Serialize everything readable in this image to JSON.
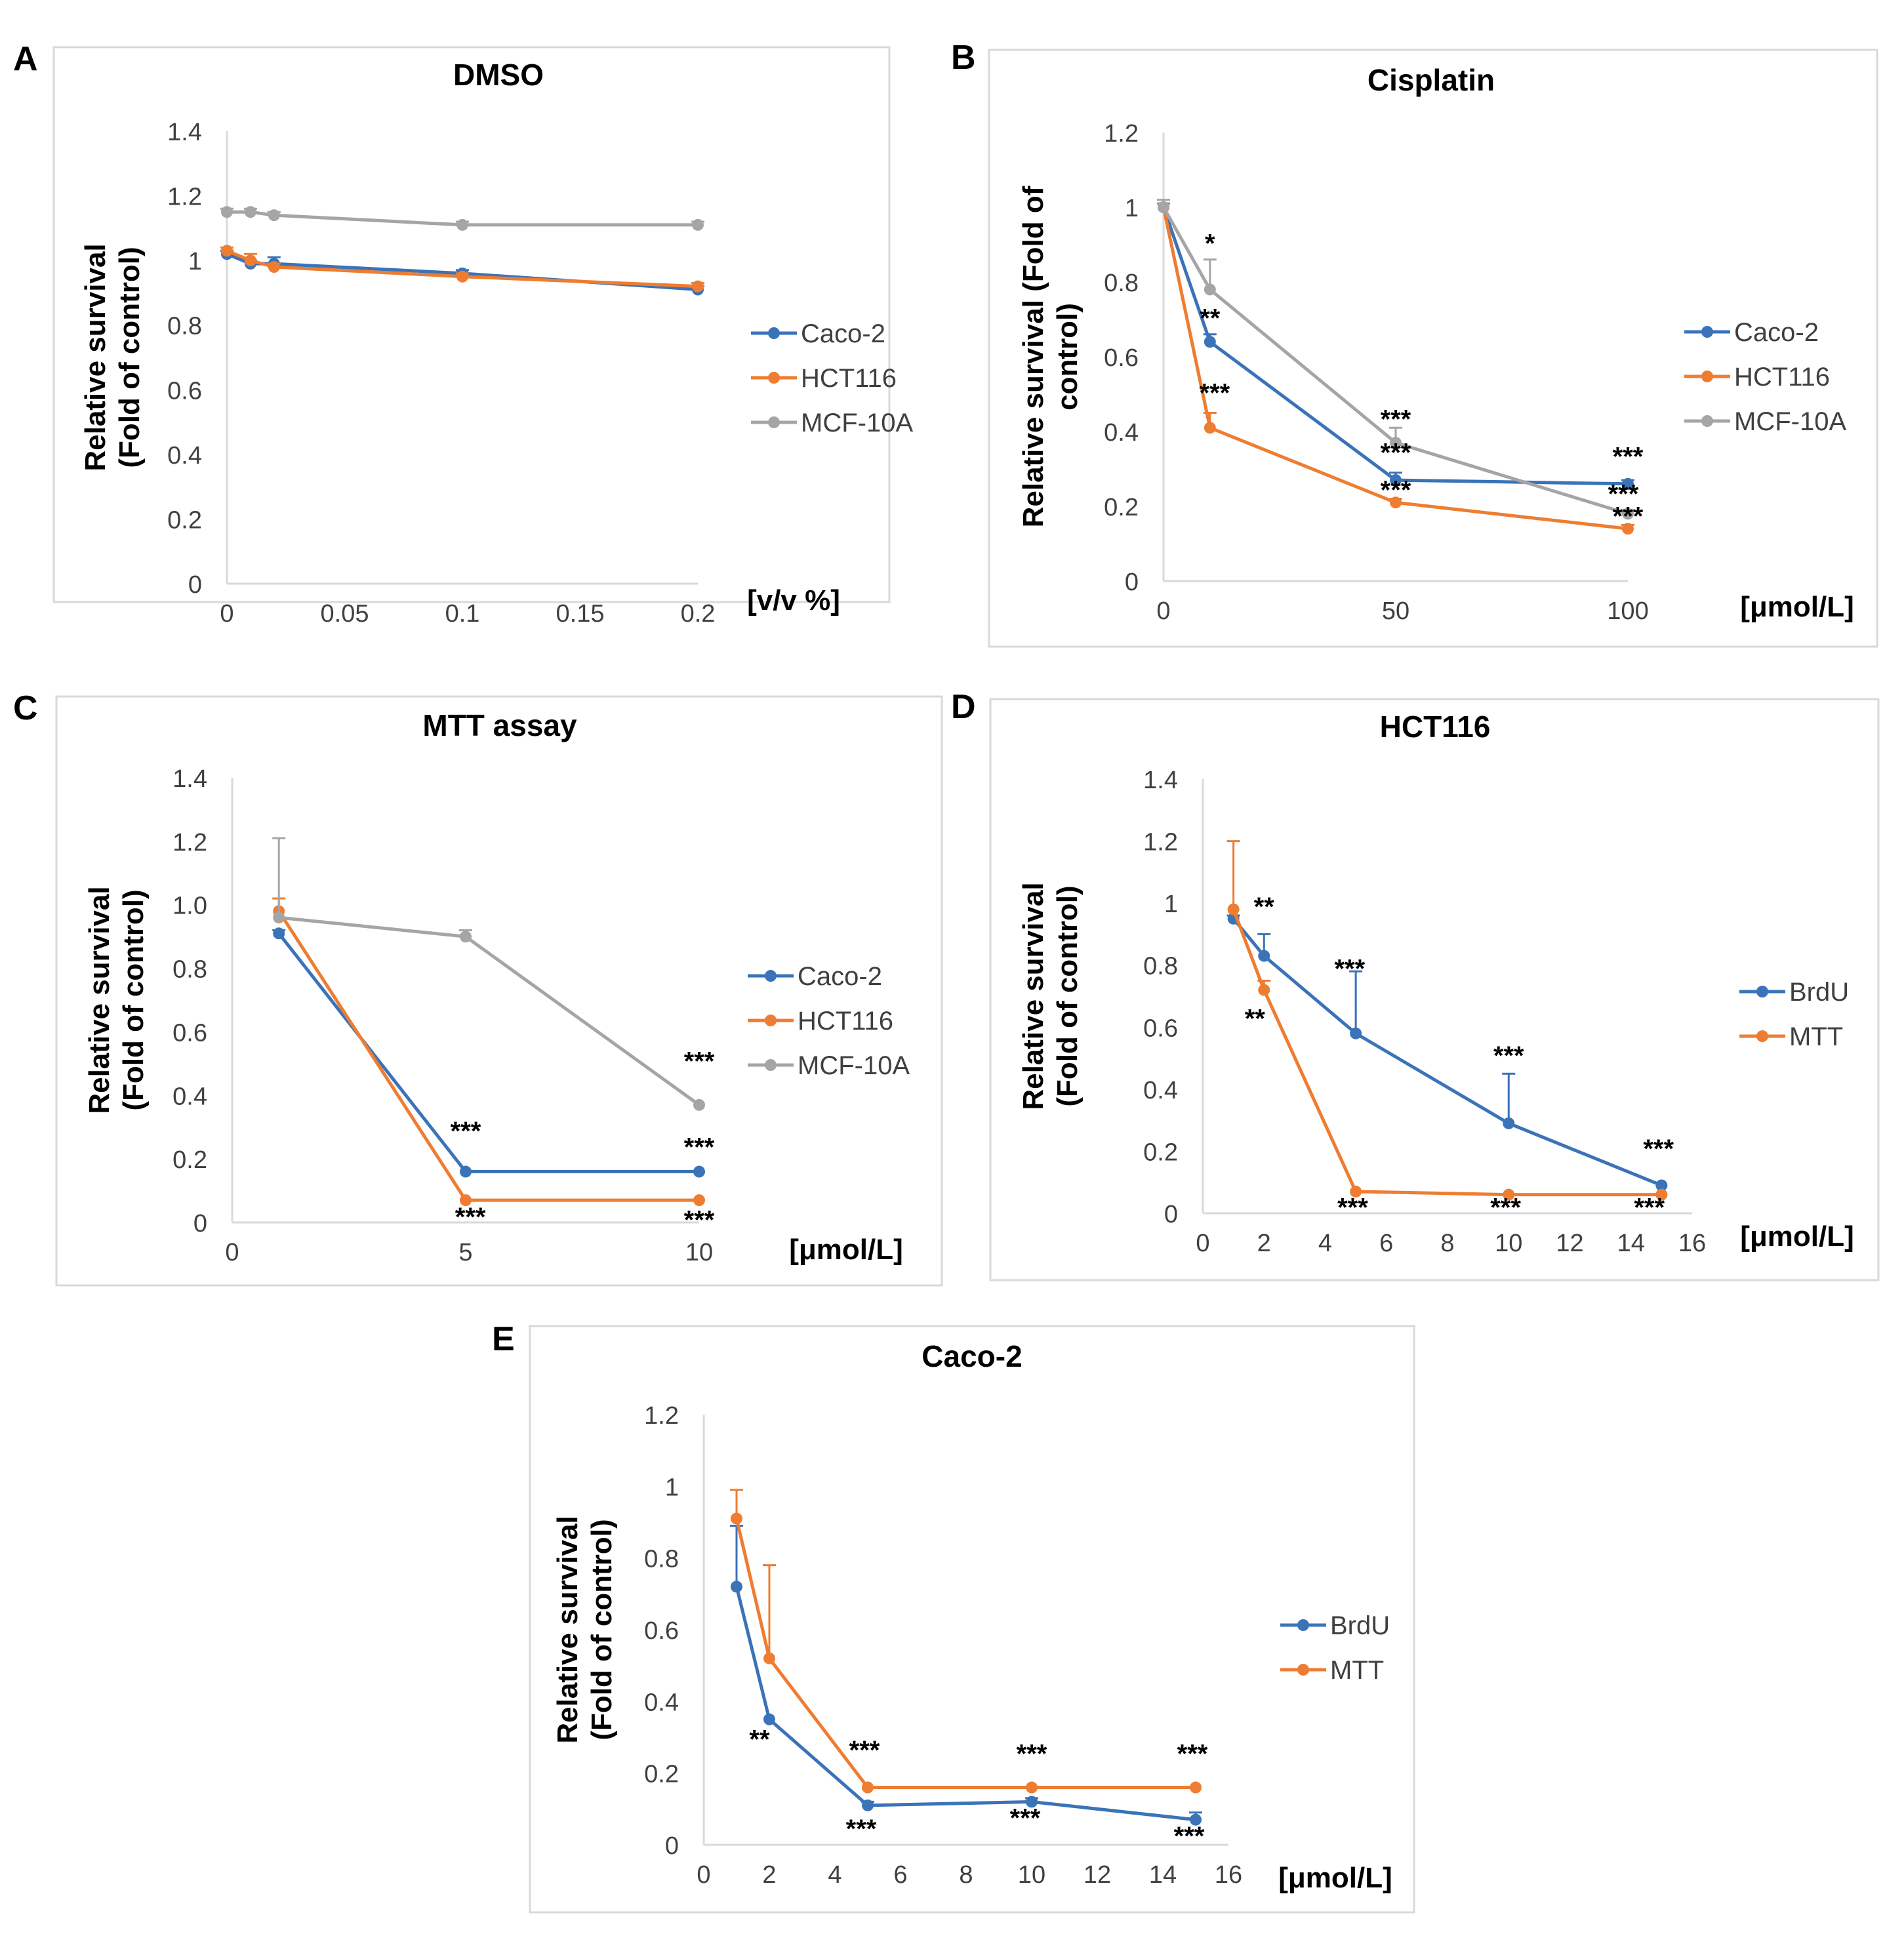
{
  "colors": {
    "caco2": "#3a73b8",
    "hct116": "#ee7d31",
    "mcf10a": "#a5a5a5",
    "brdu": "#3a73b8",
    "mtt": "#ee7d31",
    "axis": "#d9d9d9",
    "frame": "#d9d9d9",
    "text": "#000000",
    "tick": "#404040"
  },
  "chart_data": [
    {
      "panel": "A",
      "type": "line",
      "title": "DMSO",
      "xlabel": "[v/v %]",
      "ylabel": [
        "Relative survival",
        "(Fold of control)"
      ],
      "xlim": [
        0,
        0.2
      ],
      "ylim": [
        0,
        1.4
      ],
      "xticks": [
        0,
        0.05,
        0.1,
        0.15,
        0.2
      ],
      "xtick_labels": [
        "0",
        "0.05",
        "0.1",
        "0.15",
        "0.2"
      ],
      "yticks": [
        0,
        0.2,
        0.4,
        0.6,
        0.8,
        1,
        1.2,
        1.4
      ],
      "ytick_labels": [
        "0",
        "0.2",
        "0.4",
        "0.6",
        "0.8",
        "1",
        "1.2",
        "1.4"
      ],
      "series": [
        {
          "name": "Caco-2",
          "color_key": "caco2",
          "x": [
            0,
            0.01,
            0.02,
            0.1,
            0.2
          ],
          "y": [
            1.02,
            0.99,
            0.99,
            0.96,
            0.91
          ],
          "err": [
            0.01,
            0.01,
            0.02,
            0.01,
            0.01
          ]
        },
        {
          "name": "HCT116",
          "color_key": "hct116",
          "x": [
            0,
            0.01,
            0.02,
            0.1,
            0.2
          ],
          "y": [
            1.03,
            1.0,
            0.98,
            0.95,
            0.92
          ],
          "err": [
            0.01,
            0.02,
            0.01,
            0.01,
            0.01
          ]
        },
        {
          "name": "MCF-10A",
          "color_key": "mcf10a",
          "x": [
            0,
            0.01,
            0.02,
            0.1,
            0.2
          ],
          "y": [
            1.15,
            1.15,
            1.14,
            1.11,
            1.11
          ],
          "err": [
            0.01,
            0.01,
            0.01,
            0.01,
            0.01
          ]
        }
      ],
      "annotations": []
    },
    {
      "panel": "B",
      "type": "line",
      "title": "Cisplatin",
      "xlabel": "[μmol/L]",
      "ylabel": [
        "Relative survival (Fold of",
        "control)"
      ],
      "xlim": [
        0,
        100
      ],
      "ylim": [
        0,
        1.2
      ],
      "xticks": [
        0,
        50,
        100
      ],
      "xtick_labels": [
        "0",
        "50",
        "100"
      ],
      "yticks": [
        0,
        0.2,
        0.4,
        0.6,
        0.8,
        1,
        1.2
      ],
      "ytick_labels": [
        "0",
        "0.2",
        "0.4",
        "0.6",
        "0.8",
        "1",
        "1.2"
      ],
      "series": [
        {
          "name": "Caco-2",
          "color_key": "caco2",
          "x": [
            0,
            10,
            50,
            100
          ],
          "y": [
            1.0,
            0.64,
            0.27,
            0.26
          ],
          "err": [
            0.01,
            0.02,
            0.02,
            0.01
          ]
        },
        {
          "name": "HCT116",
          "color_key": "hct116",
          "x": [
            0,
            10,
            50,
            100
          ],
          "y": [
            1.0,
            0.41,
            0.21,
            0.14
          ],
          "err": [
            0.01,
            0.04,
            0.01,
            0.01
          ]
        },
        {
          "name": "MCF-10A",
          "color_key": "mcf10a",
          "x": [
            0,
            10,
            50,
            100
          ],
          "y": [
            1.0,
            0.78,
            0.37,
            0.18
          ],
          "err": [
            0.02,
            0.08,
            0.04,
            0.01
          ]
        }
      ],
      "annotations": [
        {
          "text": "*",
          "x": 10,
          "y": 0.88
        },
        {
          "text": "**",
          "x": 10,
          "y": 0.68
        },
        {
          "text": "***",
          "x": 11,
          "y": 0.48
        },
        {
          "text": "***",
          "x": 50,
          "y": 0.41
        },
        {
          "text": "***",
          "x": 50,
          "y": 0.32
        },
        {
          "text": "***",
          "x": 50,
          "y": 0.22
        },
        {
          "text": "***",
          "x": 100,
          "y": 0.31
        },
        {
          "text": "***",
          "x": 99,
          "y": 0.21
        },
        {
          "text": "***",
          "x": 100,
          "y": 0.15
        }
      ]
    },
    {
      "panel": "C",
      "type": "line",
      "title": "MTT assay",
      "xlabel": "[μmol/L]",
      "ylabel": [
        "Relative survival",
        "(Fold of control)"
      ],
      "xlim": [
        0,
        10
      ],
      "ylim": [
        0,
        1.4
      ],
      "xticks": [
        0,
        5,
        10
      ],
      "xtick_labels": [
        "0",
        "5",
        "10"
      ],
      "yticks": [
        0,
        0.2,
        0.4,
        0.6,
        0.8,
        1.0,
        1.2,
        1.4
      ],
      "ytick_labels": [
        "0",
        "0.2",
        "0.4",
        "0.6",
        "0.8",
        "1.0",
        "1.2",
        "1.4"
      ],
      "series": [
        {
          "name": "Caco-2",
          "color_key": "caco2",
          "x": [
            1,
            5,
            10
          ],
          "y": [
            0.91,
            0.16,
            0.16
          ],
          "err": [
            0.01,
            0.0,
            0.0
          ]
        },
        {
          "name": "HCT116",
          "color_key": "hct116",
          "x": [
            1,
            5,
            10
          ],
          "y": [
            0.98,
            0.07,
            0.07
          ],
          "err": [
            0.04,
            0.0,
            0.0
          ]
        },
        {
          "name": "MCF-10A",
          "color_key": "mcf10a",
          "x": [
            1,
            5,
            10
          ],
          "y": [
            0.96,
            0.9,
            0.37
          ],
          "err": [
            0.25,
            0.02,
            0.0
          ]
        }
      ],
      "annotations": [
        {
          "text": "***",
          "x": 5,
          "y": 0.26
        },
        {
          "text": "***",
          "x": 5.1,
          "y": -0.01
        },
        {
          "text": "***",
          "x": 10,
          "y": 0.48
        },
        {
          "text": "***",
          "x": 10,
          "y": 0.21
        },
        {
          "text": "***",
          "x": 10,
          "y": -0.02
        }
      ]
    },
    {
      "panel": "D",
      "type": "line",
      "title": "HCT116",
      "xlabel": "[μmol/L]",
      "ylabel": [
        "Relative survival",
        "(Fold of control)"
      ],
      "xlim": [
        0,
        16
      ],
      "ylim": [
        0,
        1.4
      ],
      "xticks": [
        0,
        2,
        4,
        6,
        8,
        10,
        12,
        14,
        16
      ],
      "xtick_labels": [
        "0",
        "2",
        "4",
        "6",
        "8",
        "10",
        "12",
        "14",
        "16"
      ],
      "yticks": [
        0,
        0.2,
        0.4,
        0.6,
        0.8,
        1,
        1.2,
        1.4
      ],
      "ytick_labels": [
        "0",
        "0.2",
        "0.4",
        "0.6",
        "0.8",
        "1",
        "1.2",
        "1.4"
      ],
      "series": [
        {
          "name": "BrdU",
          "color_key": "brdu",
          "x": [
            1,
            2,
            5,
            10,
            15
          ],
          "y": [
            0.95,
            0.83,
            0.58,
            0.29,
            0.09
          ],
          "err": [
            0.01,
            0.07,
            0.2,
            0.16,
            0.0
          ]
        },
        {
          "name": "MTT",
          "color_key": "mtt",
          "x": [
            1,
            2,
            5,
            10,
            15
          ],
          "y": [
            0.98,
            0.72,
            0.07,
            0.06,
            0.06
          ],
          "err": [
            0.22,
            0.03,
            0.0,
            0.0,
            0.0
          ]
        }
      ],
      "annotations": [
        {
          "text": "**",
          "x": 2,
          "y": 0.96
        },
        {
          "text": "**",
          "x": 1.7,
          "y": 0.6
        },
        {
          "text": "***",
          "x": 4.8,
          "y": 0.76
        },
        {
          "text": "***",
          "x": 4.9,
          "y": -0.01
        },
        {
          "text": "***",
          "x": 10,
          "y": 0.48
        },
        {
          "text": "***",
          "x": 9.9,
          "y": -0.01
        },
        {
          "text": "***",
          "x": 14.9,
          "y": 0.18
        },
        {
          "text": "***",
          "x": 14.6,
          "y": -0.01
        }
      ]
    },
    {
      "panel": "E",
      "type": "line",
      "title": "Caco-2",
      "xlabel": "[μmol/L]",
      "ylabel": [
        "Relative survival",
        "(Fold of control)"
      ],
      "xlim": [
        0,
        16
      ],
      "ylim": [
        0,
        1.2
      ],
      "xticks": [
        0,
        2,
        4,
        6,
        8,
        10,
        12,
        14,
        16
      ],
      "xtick_labels": [
        "0",
        "2",
        "4",
        "6",
        "8",
        "10",
        "12",
        "14",
        "16"
      ],
      "yticks": [
        0,
        0.2,
        0.4,
        0.6,
        0.8,
        1,
        1.2
      ],
      "ytick_labels": [
        "0",
        "0.2",
        "0.4",
        "0.6",
        "0.8",
        "1",
        "1.2"
      ],
      "series": [
        {
          "name": "BrdU",
          "color_key": "brdu",
          "x": [
            1,
            2,
            5,
            10,
            15
          ],
          "y": [
            0.72,
            0.35,
            0.11,
            0.12,
            0.07
          ],
          "err": [
            0.17,
            0.0,
            0.01,
            0.01,
            0.02
          ]
        },
        {
          "name": "MTT",
          "color_key": "mtt",
          "x": [
            1,
            2,
            5,
            10,
            15
          ],
          "y": [
            0.91,
            0.52,
            0.16,
            0.16,
            0.16
          ],
          "err": [
            0.08,
            0.26,
            0.0,
            0.0,
            0.0
          ]
        }
      ],
      "annotations": [
        {
          "text": "**",
          "x": 1.7,
          "y": 0.27
        },
        {
          "text": "***",
          "x": 4.9,
          "y": 0.24
        },
        {
          "text": "***",
          "x": 4.8,
          "y": 0.02
        },
        {
          "text": "***",
          "x": 10,
          "y": 0.23
        },
        {
          "text": "***",
          "x": 9.8,
          "y": 0.05
        },
        {
          "text": "***",
          "x": 14.9,
          "y": 0.23
        },
        {
          "text": "***",
          "x": 14.8,
          "y": 0.0
        }
      ]
    }
  ]
}
